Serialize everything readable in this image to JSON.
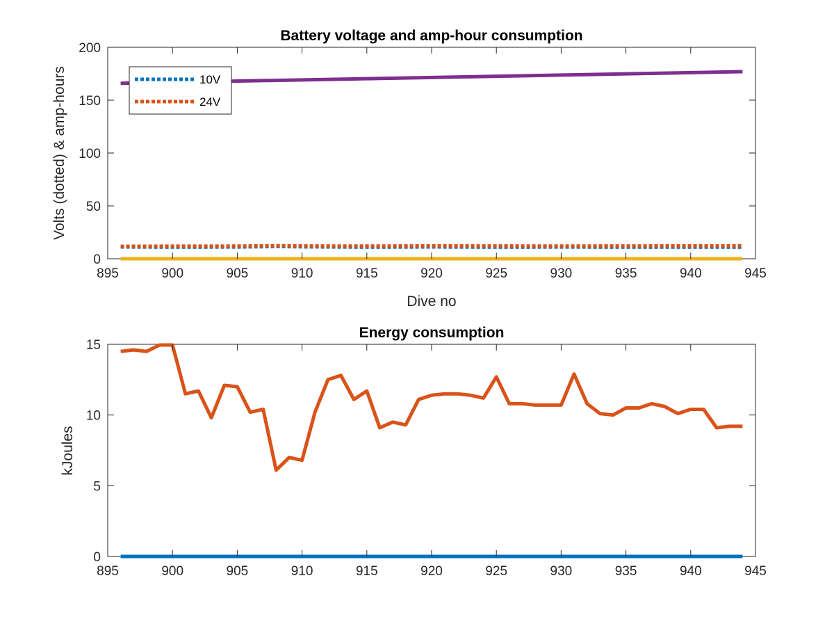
{
  "chart_data": [
    {
      "type": "line",
      "title": "Battery voltage and amp-hour consumption",
      "xlabel": "Dive no",
      "ylabel": "Volts (dotted) & amp-hours",
      "xlim": [
        895,
        945
      ],
      "ylim": [
        0,
        200
      ],
      "xticks": [
        895,
        900,
        905,
        910,
        915,
        920,
        925,
        930,
        935,
        940,
        945
      ],
      "yticks": [
        0,
        50,
        100,
        150,
        200
      ],
      "legend": {
        "placement": "top-left",
        "entries": [
          "10V",
          "24V"
        ]
      },
      "series": [
        {
          "name": "10V",
          "style": "dotted",
          "color": "#0072BD",
          "x": [
            896,
            900,
            905,
            908,
            910,
            915,
            920,
            925,
            930,
            935,
            940,
            944
          ],
          "y": [
            11.2,
            11.0,
            11.1,
            11.6,
            11.3,
            11.0,
            11.2,
            11.0,
            11.1,
            11.0,
            11.0,
            11.0
          ]
        },
        {
          "name": "24V",
          "style": "dotted",
          "color": "#D95319",
          "x": [
            896,
            900,
            905,
            908,
            910,
            915,
            920,
            925,
            930,
            935,
            940,
            944
          ],
          "y": [
            11.8,
            11.9,
            12.0,
            12.4,
            12.1,
            12.0,
            12.2,
            12.1,
            12.0,
            12.1,
            12.2,
            12.3
          ]
        },
        {
          "style": "solid",
          "color": "#EDB120",
          "x": [
            896,
            944
          ],
          "y": [
            0,
            0
          ]
        },
        {
          "style": "solid",
          "color": "#7E2F8E",
          "x": [
            896,
            944
          ],
          "y": [
            166,
            177
          ]
        }
      ]
    },
    {
      "type": "line",
      "title": "Energy consumption",
      "xlabel": "",
      "ylabel": "kJoules",
      "xlim": [
        895,
        945
      ],
      "ylim": [
        0,
        15
      ],
      "xticks": [
        895,
        900,
        905,
        910,
        915,
        920,
        925,
        930,
        935,
        940,
        945
      ],
      "yticks": [
        0,
        5,
        10,
        15
      ],
      "series": [
        {
          "style": "solid",
          "color": "#D95319",
          "x": [
            896,
            897,
            898,
            899,
            900,
            901,
            902,
            903,
            904,
            905,
            906,
            907,
            908,
            909,
            910,
            911,
            912,
            913,
            914,
            915,
            916,
            917,
            918,
            919,
            920,
            921,
            922,
            923,
            924,
            925,
            926,
            927,
            928,
            929,
            930,
            931,
            932,
            933,
            934,
            935,
            936,
            937,
            938,
            939,
            940,
            941,
            942,
            943,
            944
          ],
          "y": [
            14.5,
            14.6,
            14.5,
            14.95,
            14.95,
            11.5,
            11.7,
            9.8,
            12.1,
            12.0,
            10.2,
            10.4,
            6.1,
            7.0,
            6.8,
            10.2,
            12.5,
            12.8,
            11.1,
            11.7,
            9.1,
            9.5,
            9.3,
            11.1,
            11.4,
            11.5,
            11.5,
            11.4,
            11.2,
            12.7,
            10.8,
            10.8,
            10.7,
            10.7,
            10.7,
            12.9,
            10.8,
            10.1,
            10.0,
            10.5,
            10.5,
            10.8,
            10.6,
            10.1,
            10.4,
            10.4,
            9.1,
            9.2,
            9.2
          ]
        },
        {
          "style": "solid",
          "color": "#0072BD",
          "x": [
            896,
            944
          ],
          "y": [
            0,
            0
          ]
        }
      ]
    }
  ]
}
